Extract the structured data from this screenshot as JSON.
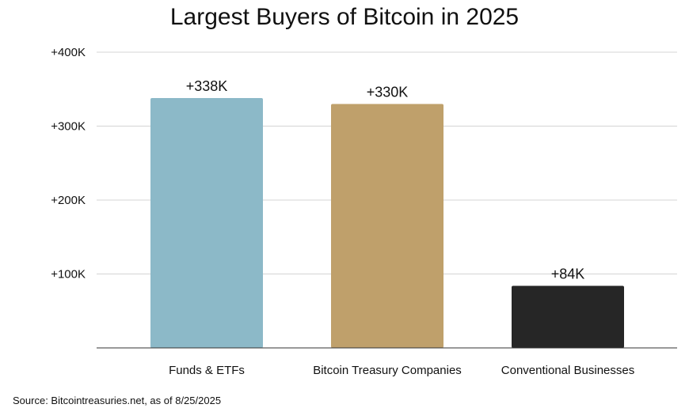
{
  "chart_data": {
    "type": "bar",
    "title": "Largest Buyers of Bitcoin in 2025",
    "categories": [
      "Funds & ETFs",
      "Bitcoin Treasury Companies",
      "Conventional Businesses"
    ],
    "values": [
      338000,
      330000,
      84000
    ],
    "data_labels": [
      "+338K",
      "+330K",
      "+84K"
    ],
    "bar_colors": [
      "#8cb9c8",
      "#bfa06b",
      "#262626"
    ],
    "ylim": [
      0,
      400000
    ],
    "y_ticks": [
      100000,
      200000,
      300000,
      400000
    ],
    "y_tick_labels": [
      "+100K",
      "+200K",
      "+300K",
      "+400K"
    ],
    "grid": true,
    "legend": "none",
    "xlabel": "",
    "ylabel": ""
  },
  "source": "Source: Bitcointreasuries.net, as of 8/25/2025"
}
